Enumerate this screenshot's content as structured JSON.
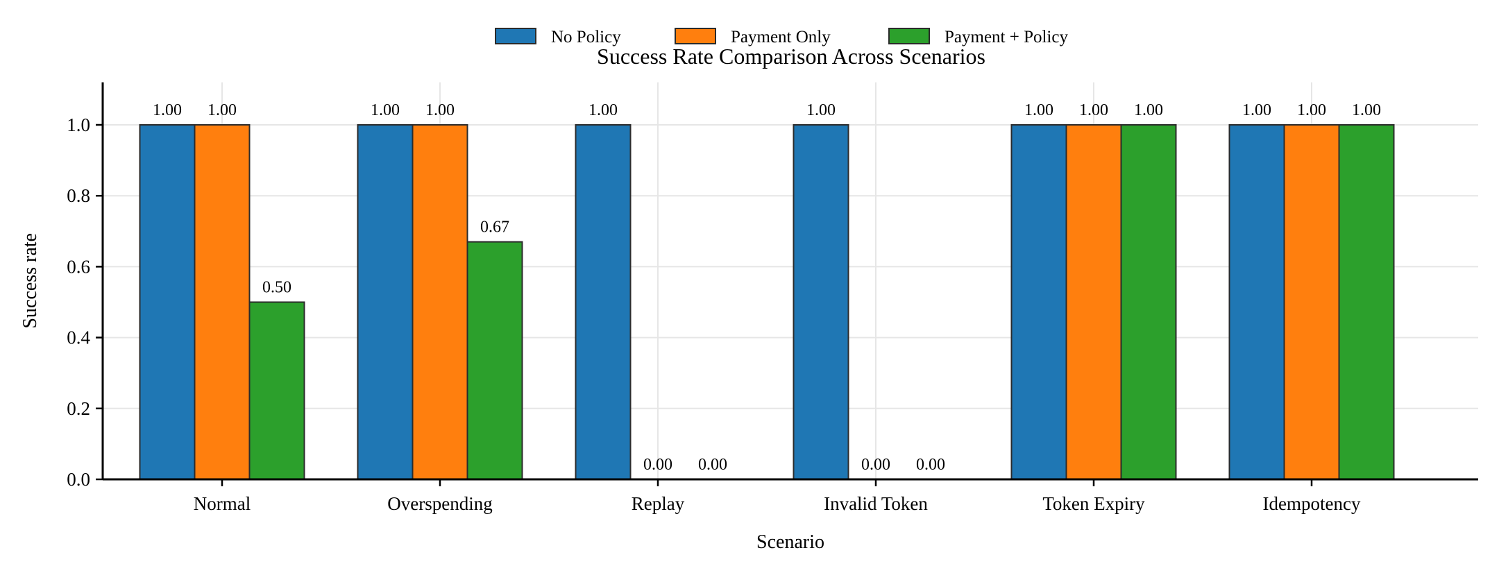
{
  "chart_data": {
    "type": "bar",
    "title": "Success Rate Comparison Across Scenarios",
    "xlabel": "Scenario",
    "ylabel": "Success rate",
    "ylim": [
      0,
      1.12
    ],
    "yticks": [
      0.0,
      0.2,
      0.4,
      0.6,
      0.8,
      1.0
    ],
    "ytick_labels": [
      "0.0",
      "0.2",
      "0.4",
      "0.6",
      "0.8",
      "1.0"
    ],
    "grid": true,
    "legend_position": "top-center",
    "categories": [
      "Normal",
      "Overspending",
      "Replay",
      "Invalid Token",
      "Token Expiry",
      "Idempotency"
    ],
    "series": [
      {
        "name": "No Policy",
        "color": "#1f77b4",
        "values": [
          1.0,
          1.0,
          1.0,
          1.0,
          1.0,
          1.0
        ],
        "labels": [
          "1.00",
          "1.00",
          "1.00",
          "1.00",
          "1.00",
          "1.00"
        ]
      },
      {
        "name": "Payment Only",
        "color": "#ff7f0e",
        "values": [
          1.0,
          1.0,
          0.0,
          0.0,
          1.0,
          1.0
        ],
        "labels": [
          "1.00",
          "1.00",
          "0.00",
          "0.00",
          "1.00",
          "1.00"
        ]
      },
      {
        "name": "Payment + Policy",
        "color": "#2ca02c",
        "values": [
          0.5,
          0.67,
          0.0,
          0.0,
          1.0,
          1.0
        ],
        "labels": [
          "0.50",
          "0.67",
          "0.00",
          "0.00",
          "1.00",
          "1.00"
        ]
      }
    ]
  }
}
